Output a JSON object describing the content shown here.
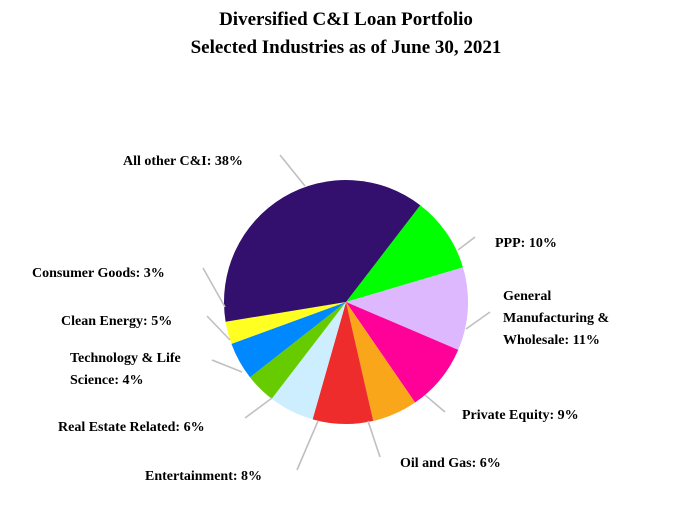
{
  "chart_data": {
    "type": "pie",
    "title": "Diversified C&I Loan Portfolio",
    "subtitle": "Selected Industries as of June 30, 2021",
    "slices": [
      {
        "label": "PPP: 10%",
        "value": 10,
        "color": "#00FF00"
      },
      {
        "label": "General Manufacturing & Wholesale: 11%",
        "value": 11,
        "color": "#DDB8FF"
      },
      {
        "label": "Private Equity: 9%",
        "value": 9,
        "color": "#FF0099"
      },
      {
        "label": "Oil and Gas: 6%",
        "value": 6,
        "color": "#F9A61A"
      },
      {
        "label": "Entertainment: 8%",
        "value": 8,
        "color": "#EE2C2C"
      },
      {
        "label": "Real Estate Related: 6%",
        "value": 6,
        "color": "#CCEEFF"
      },
      {
        "label": "Technology & Life Science: 4%",
        "value": 4,
        "color": "#66CC00"
      },
      {
        "label": "Clean Energy: 5%",
        "value": 5,
        "color": "#0088FF"
      },
      {
        "label": "Consumer Goods: 3%",
        "value": 3,
        "color": "#FFFF22"
      },
      {
        "label": "All other C&I: 38%",
        "value": 38,
        "color": "#33106E"
      }
    ]
  }
}
